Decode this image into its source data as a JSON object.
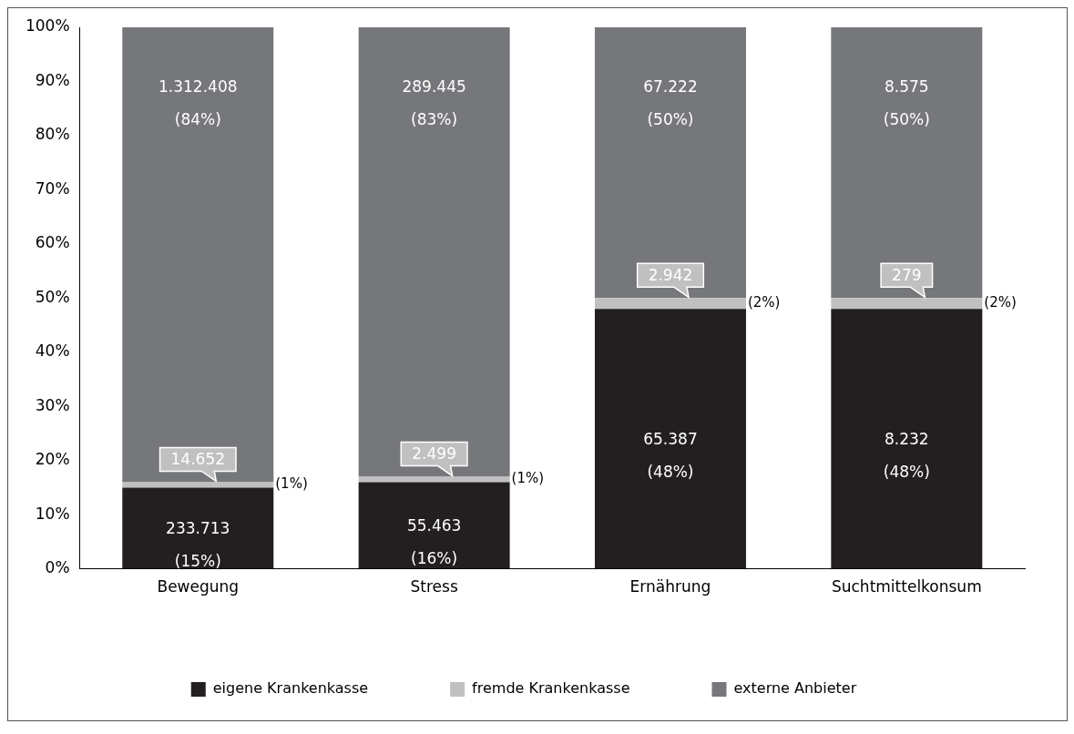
{
  "chart_data": {
    "type": "bar",
    "stacked": true,
    "categories": [
      "Bewegung",
      "Stress",
      "Ernährung",
      "Suchtmittelkonsum"
    ],
    "series": [
      {
        "name": "eigene Krankenkasse",
        "color": "#231f20",
        "values": [
          15,
          16,
          48,
          48
        ],
        "value_labels": [
          "233.713 (15%)",
          "55.463 (16%)",
          "65.387 (48%)",
          "8.232 (48%)"
        ]
      },
      {
        "name": "fremde Krankenkasse",
        "color": "#c0c0c0",
        "values": [
          1,
          1,
          2,
          2
        ],
        "value_labels": [
          "14.652 (1%)",
          "2.499 (1%)",
          "2.942 (2%)",
          "279 (2%)"
        ]
      },
      {
        "name": "externe Anbieter",
        "color": "#76777a",
        "values": [
          84,
          83,
          50,
          50
        ],
        "value_labels": [
          "1.312.408 (84%)",
          "289.445 (83%)",
          "67.222 (50%)",
          "8.575 (50%)"
        ]
      }
    ],
    "ylim": [
      0,
      100
    ],
    "yticks": [
      {
        "value": 0,
        "label": "0%"
      },
      {
        "value": 10,
        "label": "10%"
      },
      {
        "value": 20,
        "label": "20%"
      },
      {
        "value": 30,
        "label": "30%"
      },
      {
        "value": 40,
        "label": "40%"
      },
      {
        "value": 50,
        "label": "50%"
      },
      {
        "value": 60,
        "label": "60%"
      },
      {
        "value": 70,
        "label": "70%"
      },
      {
        "value": 80,
        "label": "80%"
      },
      {
        "value": 90,
        "label": "90%"
      },
      {
        "value": 100,
        "label": "100%"
      }
    ],
    "grid": false,
    "legend": "bottom"
  }
}
